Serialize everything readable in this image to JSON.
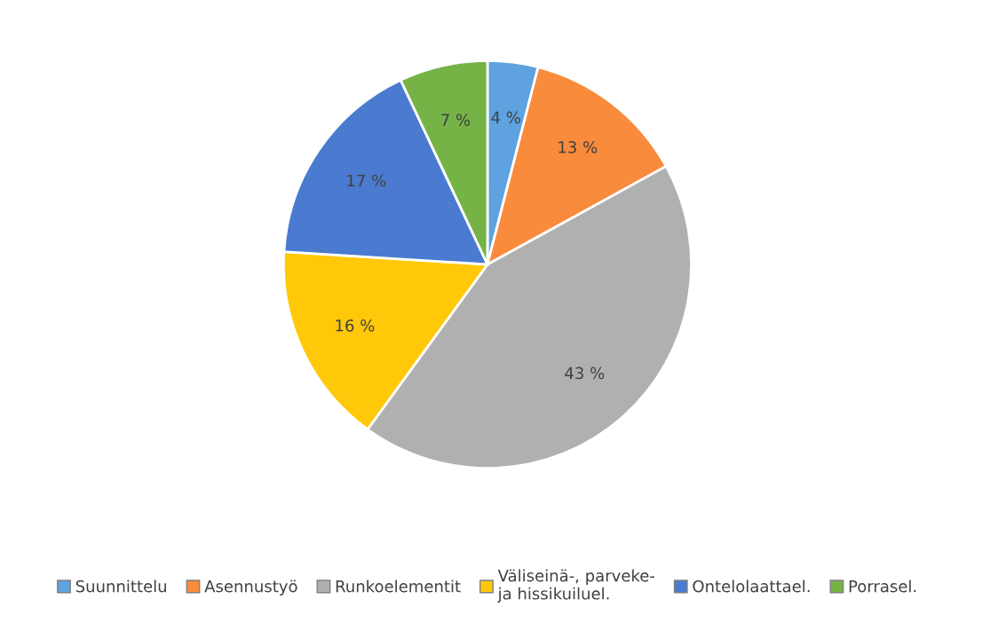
{
  "chart_data": {
    "type": "pie",
    "categories": [
      "Suunnittelu",
      "Asennustyö",
      "Runkoelementit",
      "Väliseinä-, parveke-\nja hissikuiluel.",
      "Ontelolaattael.",
      "Porrasel."
    ],
    "values": [
      4,
      13,
      43,
      16,
      17,
      7
    ],
    "value_labels": [
      "4 %",
      "13 %",
      "43 %",
      "16 %",
      "17 %",
      "7 %"
    ],
    "colors": [
      "#5ea2e0",
      "#f98b3c",
      "#b0b0b0",
      "#ffc90a",
      "#4a7bd0",
      "#76b347"
    ],
    "legend": "bottom"
  }
}
